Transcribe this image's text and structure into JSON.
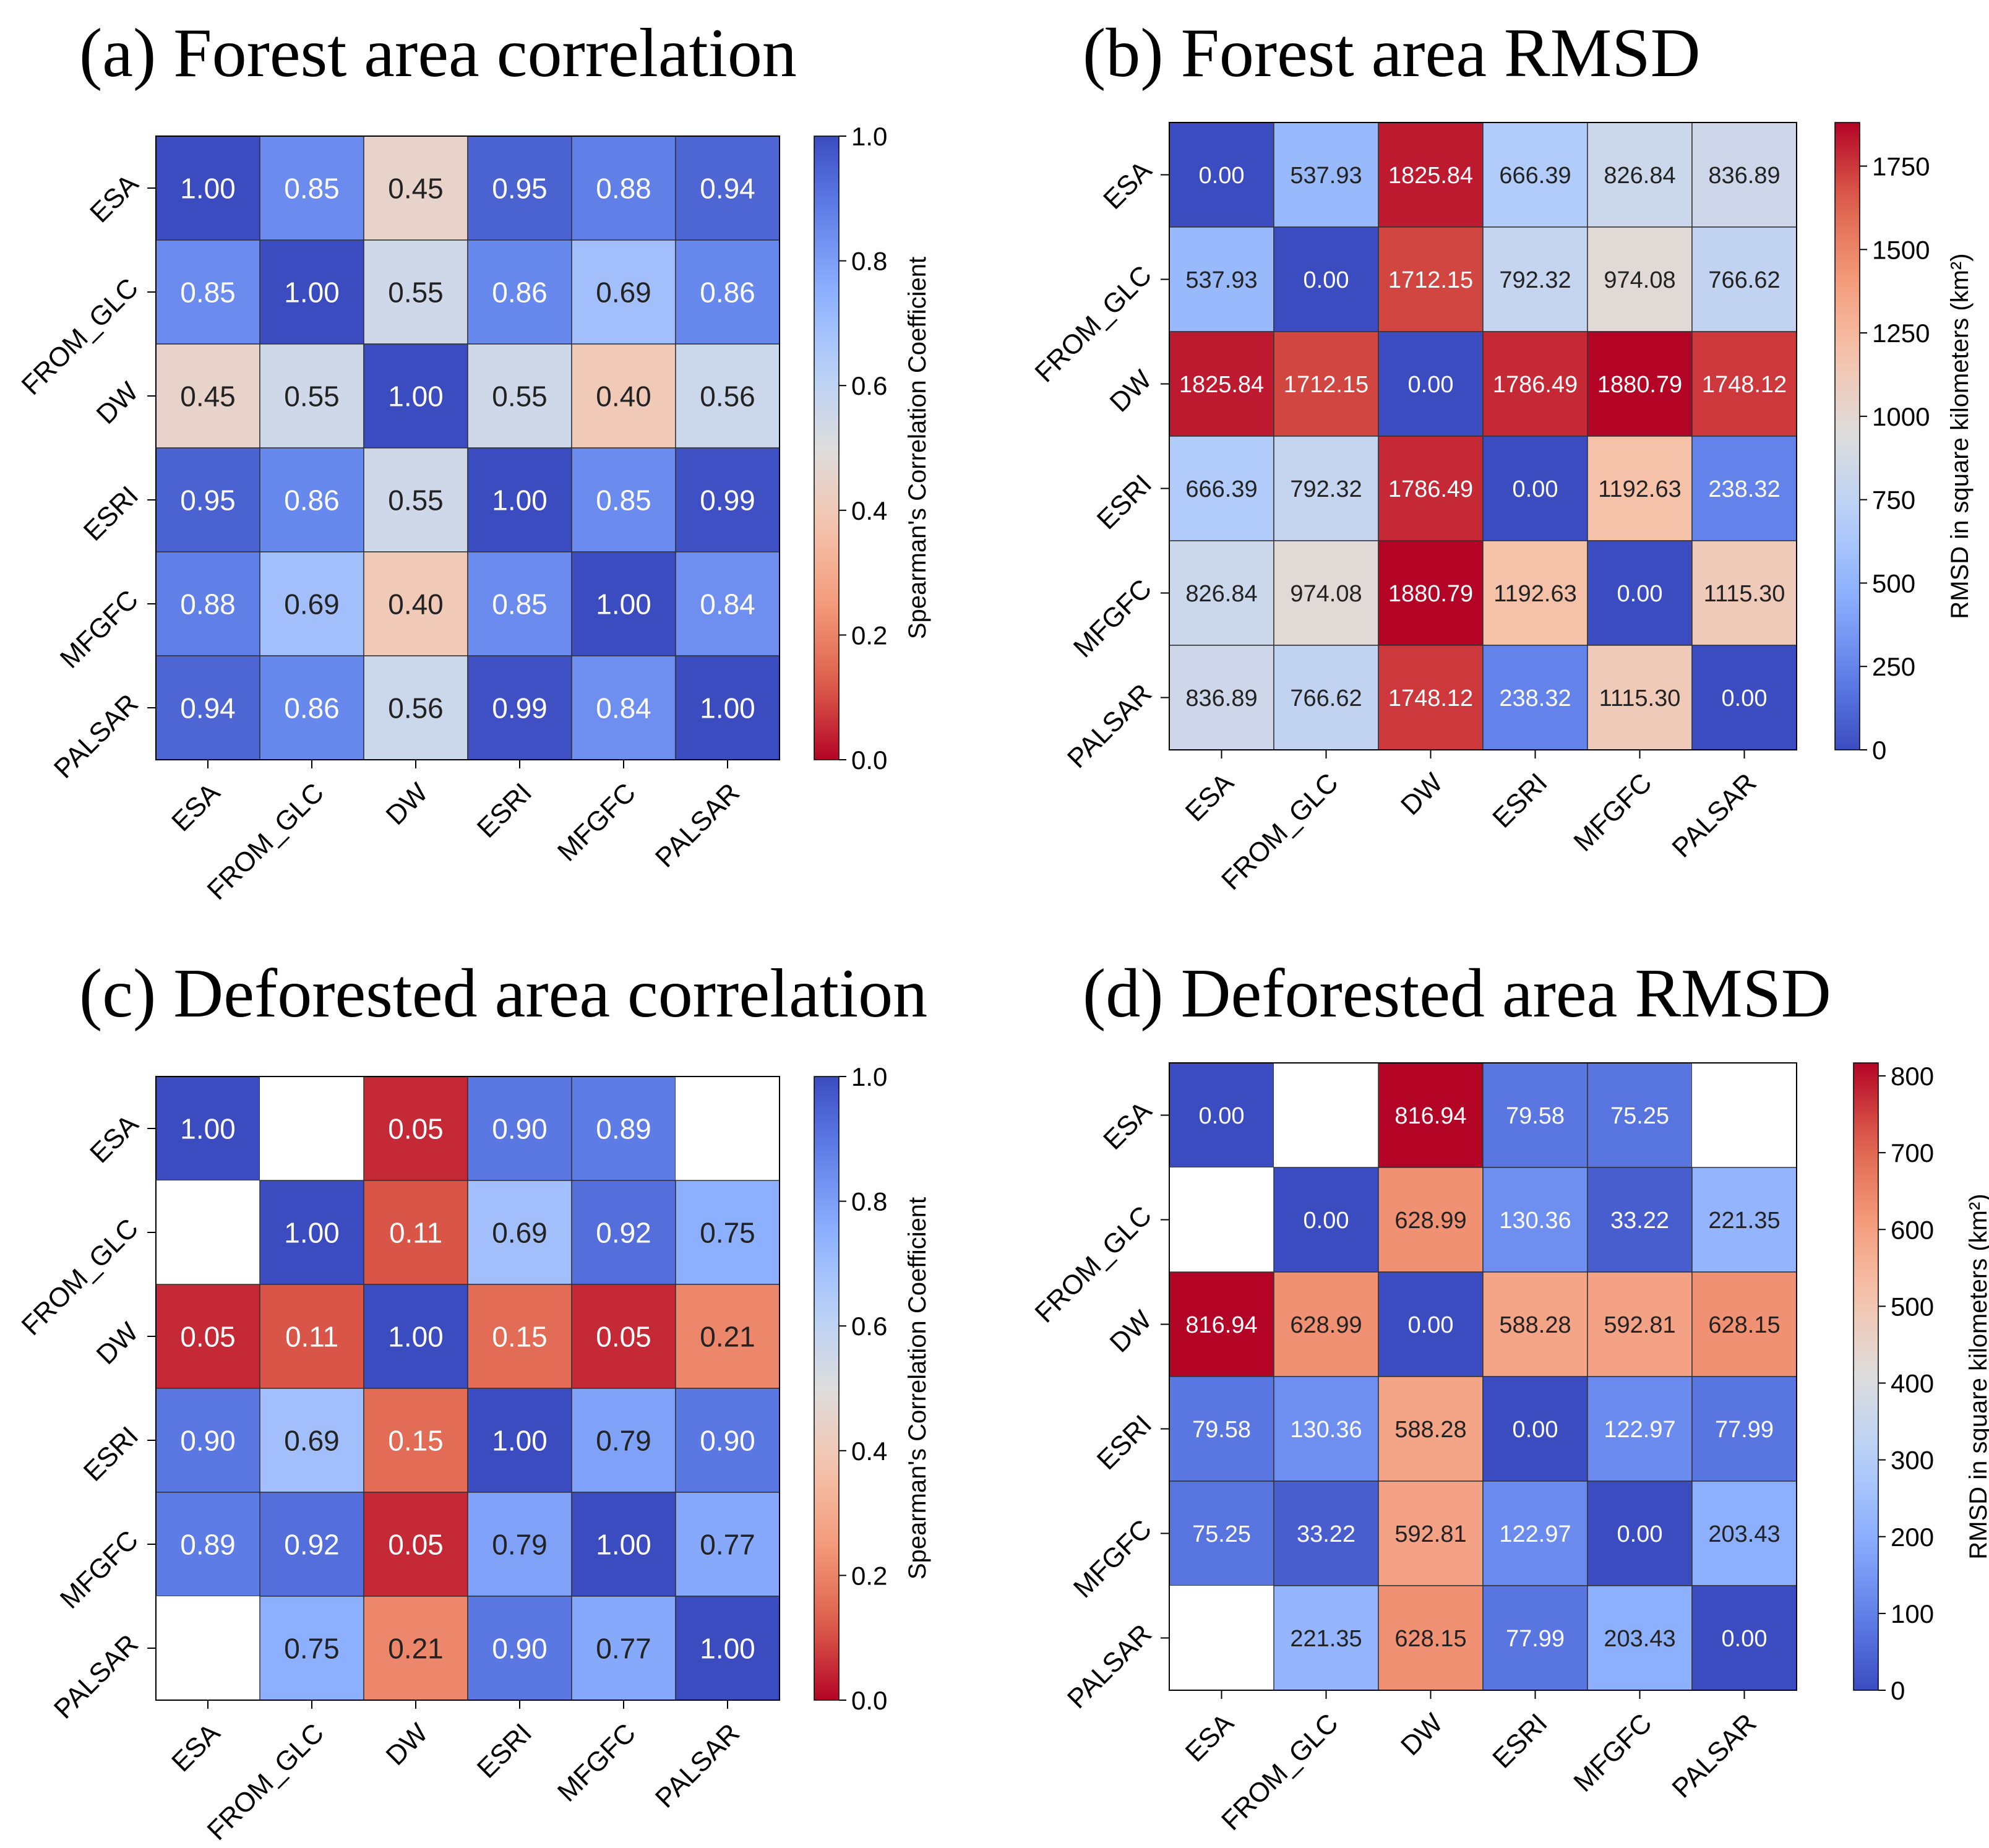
{
  "chart_data": [
    {
      "type": "heatmap",
      "title": "(a) Forest area correlation",
      "labels": [
        "ESA",
        "FROM_GLC",
        "DW",
        "ESRI",
        "MFGFC",
        "PALSAR"
      ],
      "matrix": [
        [
          1.0,
          0.85,
          0.45,
          0.95,
          0.88,
          0.94
        ],
        [
          0.85,
          1.0,
          0.55,
          0.86,
          0.69,
          0.86
        ],
        [
          0.45,
          0.55,
          1.0,
          0.55,
          0.4,
          0.56
        ],
        [
          0.95,
          0.86,
          0.55,
          1.0,
          0.85,
          0.99
        ],
        [
          0.88,
          0.69,
          0.4,
          0.85,
          1.0,
          0.84
        ],
        [
          0.94,
          0.86,
          0.56,
          0.99,
          0.84,
          1.0
        ]
      ],
      "decimals": 2,
      "colormap": "coolwarm_r",
      "vmin": 0.0,
      "vmax": 1.0,
      "colorbar_label": "Spearman's Correlation Coefficient",
      "colorbar_ticks": [
        0.0,
        0.2,
        0.4,
        0.6,
        0.8,
        1.0
      ],
      "colorbar_tick_decimals": 1
    },
    {
      "type": "heatmap",
      "title": "(b) Forest area RMSD",
      "labels": [
        "ESA",
        "FROM_GLC",
        "DW",
        "ESRI",
        "MFGFC",
        "PALSAR"
      ],
      "matrix": [
        [
          0.0,
          537.93,
          1825.84,
          666.39,
          826.84,
          836.89
        ],
        [
          537.93,
          0.0,
          1712.15,
          792.32,
          974.08,
          766.62
        ],
        [
          1825.84,
          1712.15,
          0.0,
          1786.49,
          1880.79,
          1748.12
        ],
        [
          666.39,
          792.32,
          1786.49,
          0.0,
          1192.63,
          238.32
        ],
        [
          826.84,
          974.08,
          1880.79,
          1192.63,
          0.0,
          1115.3
        ],
        [
          836.89,
          766.62,
          1748.12,
          238.32,
          1115.3,
          0.0
        ]
      ],
      "decimals": 2,
      "colormap": "coolwarm",
      "vmin": 0,
      "vmax": 1880.79,
      "colorbar_label": "RMSD in square kilometers (km²)",
      "colorbar_ticks": [
        0,
        250,
        500,
        750,
        1000,
        1250,
        1500,
        1750
      ],
      "colorbar_tick_decimals": 0
    },
    {
      "type": "heatmap",
      "title": "(c) Deforested area correlation",
      "labels": [
        "ESA",
        "FROM_GLC",
        "DW",
        "ESRI",
        "MFGFC",
        "PALSAR"
      ],
      "matrix": [
        [
          1.0,
          null,
          0.05,
          0.9,
          0.89,
          null
        ],
        [
          null,
          1.0,
          0.11,
          0.69,
          0.92,
          0.75
        ],
        [
          0.05,
          0.11,
          1.0,
          0.15,
          0.05,
          0.21
        ],
        [
          0.9,
          0.69,
          0.15,
          1.0,
          0.79,
          0.9
        ],
        [
          0.89,
          0.92,
          0.05,
          0.79,
          1.0,
          0.77
        ],
        [
          null,
          0.75,
          0.21,
          0.9,
          0.77,
          1.0
        ]
      ],
      "decimals": 2,
      "colormap": "coolwarm_r",
      "vmin": 0.0,
      "vmax": 1.0,
      "colorbar_label": "Spearman's Correlation Coefficient",
      "colorbar_ticks": [
        0.0,
        0.2,
        0.4,
        0.6,
        0.8,
        1.0
      ],
      "colorbar_tick_decimals": 1
    },
    {
      "type": "heatmap",
      "title": "(d) Deforested area RMSD",
      "labels": [
        "ESA",
        "FROM_GLC",
        "DW",
        "ESRI",
        "MFGFC",
        "PALSAR"
      ],
      "matrix": [
        [
          0.0,
          null,
          816.94,
          79.58,
          75.25,
          null
        ],
        [
          null,
          0.0,
          628.99,
          130.36,
          33.22,
          221.35
        ],
        [
          816.94,
          628.99,
          0.0,
          588.28,
          592.81,
          628.15
        ],
        [
          79.58,
          130.36,
          588.28,
          0.0,
          122.97,
          77.99
        ],
        [
          75.25,
          33.22,
          592.81,
          122.97,
          0.0,
          203.43
        ],
        [
          null,
          221.35,
          628.15,
          77.99,
          203.43,
          0.0
        ]
      ],
      "decimals": 2,
      "colormap": "coolwarm",
      "vmin": 0,
      "vmax": 816.94,
      "colorbar_label": "RMSD in square kilometers (km²)",
      "colorbar_ticks": [
        0,
        100,
        200,
        300,
        400,
        500,
        600,
        700,
        800
      ],
      "colorbar_tick_decimals": 0
    }
  ]
}
